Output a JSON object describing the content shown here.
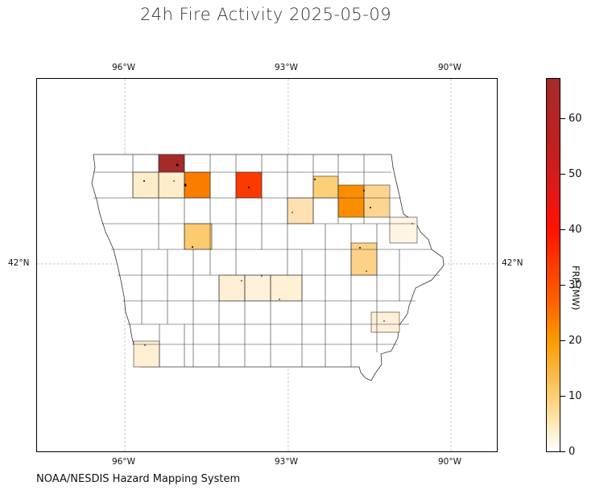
{
  "title": "24h Fire Activity 2025-05-09",
  "source": "NOAA/NESDIS Hazard Mapping System",
  "lon_labels": [
    "96°W",
    "93°W",
    "90°W"
  ],
  "lat_labels": [
    "42°N"
  ],
  "colorbar": {
    "label": "FRP (MW)",
    "ticks": [
      "0",
      "10",
      "20",
      "30",
      "40",
      "50",
      "60"
    ],
    "range": [
      0,
      67
    ],
    "colormap": "white-orange-red-brown"
  },
  "colors": {
    "county_border": "#333333",
    "gridline": "#bbbbbb",
    "low": "#fff5e0",
    "mid": "#fdd07a",
    "high": "#fb8a00",
    "very_high": "#fb3400",
    "max": "#a52a2a"
  }
}
